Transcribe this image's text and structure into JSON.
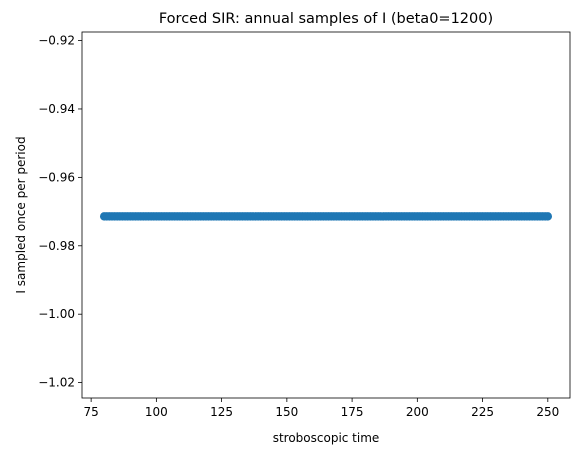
{
  "chart_data": {
    "type": "scatter",
    "title": "Forced SIR: annual samples of I (beta0=1200)",
    "xlabel": "stroboscopic time",
    "ylabel": "I sampled once per period",
    "xlim": [
      71.5,
      258.5
    ],
    "ylim": [
      -1.0245,
      -0.9175
    ],
    "xticks": [
      75,
      100,
      125,
      150,
      175,
      200,
      225,
      250
    ],
    "yticks": [
      -1.02,
      -1.0,
      -0.98,
      -0.96,
      -0.94,
      -0.92
    ],
    "ytick_labels": [
      "−1.02",
      "−1.00",
      "−0.98",
      "−0.96",
      "−0.94",
      "−0.92"
    ],
    "grid": false,
    "marker_color": "#1f77b4",
    "series": [
      {
        "x_start": 80,
        "x_end": 250,
        "x_step": 1,
        "y_constant": -0.9714
      }
    ]
  }
}
